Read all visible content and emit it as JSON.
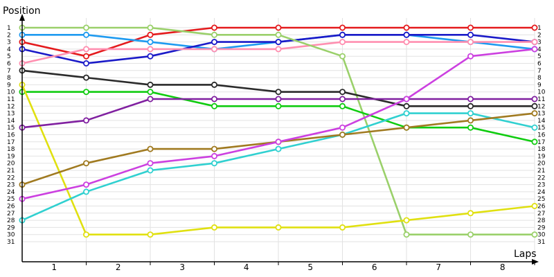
{
  "chart_data": {
    "type": "line",
    "ylabel": "Position",
    "xlabel": "Laps",
    "x_tick_labels": [
      "1",
      "2",
      "3",
      "4",
      "5",
      "6",
      "7",
      "8"
    ],
    "y_tick_labels": [
      "1",
      "2",
      "3",
      "4",
      "5",
      "6",
      "7",
      "8",
      "9",
      "10",
      "11",
      "12",
      "13",
      "14",
      "15",
      "16",
      "17",
      "18",
      "19",
      "20",
      "21",
      "22",
      "23",
      "24",
      "25",
      "26",
      "27",
      "28",
      "29",
      "30",
      "31"
    ],
    "y_range": [
      1,
      31
    ],
    "x_range": [
      0,
      8.5
    ],
    "grid": true,
    "series": [
      {
        "color": "#e41a1c",
        "values": [
          3,
          5,
          2,
          1,
          1,
          1,
          1,
          1,
          1
        ]
      },
      {
        "color": "#1e9af0",
        "values": [
          2,
          2,
          3,
          4,
          3,
          2,
          2,
          3,
          4
        ]
      },
      {
        "color": "#1a1ac8",
        "values": [
          4,
          6,
          5,
          3,
          3,
          2,
          2,
          2,
          3
        ]
      },
      {
        "color": "#ff8fb0",
        "values": [
          6,
          4,
          4,
          4,
          4,
          3,
          3,
          3,
          3
        ]
      },
      {
        "color": "#9ad06a",
        "values": [
          1,
          1,
          1,
          2,
          2,
          5,
          30,
          30,
          30
        ]
      },
      {
        "color": "#2a2a2a",
        "values": [
          7,
          8,
          9,
          9,
          10,
          10,
          12,
          12,
          12
        ]
      },
      {
        "color": "#10cc10",
        "values": [
          10,
          10,
          10,
          12,
          12,
          12,
          15,
          15,
          17
        ]
      },
      {
        "color": "#e0e010",
        "values": [
          9,
          30,
          30,
          29,
          29,
          29,
          28,
          27,
          26
        ]
      },
      {
        "color": "#30d0d0",
        "values": [
          28,
          24,
          21,
          20,
          18,
          16,
          13,
          13,
          15
        ]
      },
      {
        "color": "#a07a20",
        "values": [
          23,
          20,
          18,
          18,
          17,
          16,
          15,
          14,
          13
        ]
      },
      {
        "color": "#8020a0",
        "values": [
          15,
          14,
          11,
          11,
          11,
          11,
          11,
          11,
          11
        ]
      },
      {
        "color": "#cc40e0",
        "values": [
          25,
          23,
          20,
          19,
          17,
          15,
          11,
          5,
          4
        ]
      }
    ]
  }
}
